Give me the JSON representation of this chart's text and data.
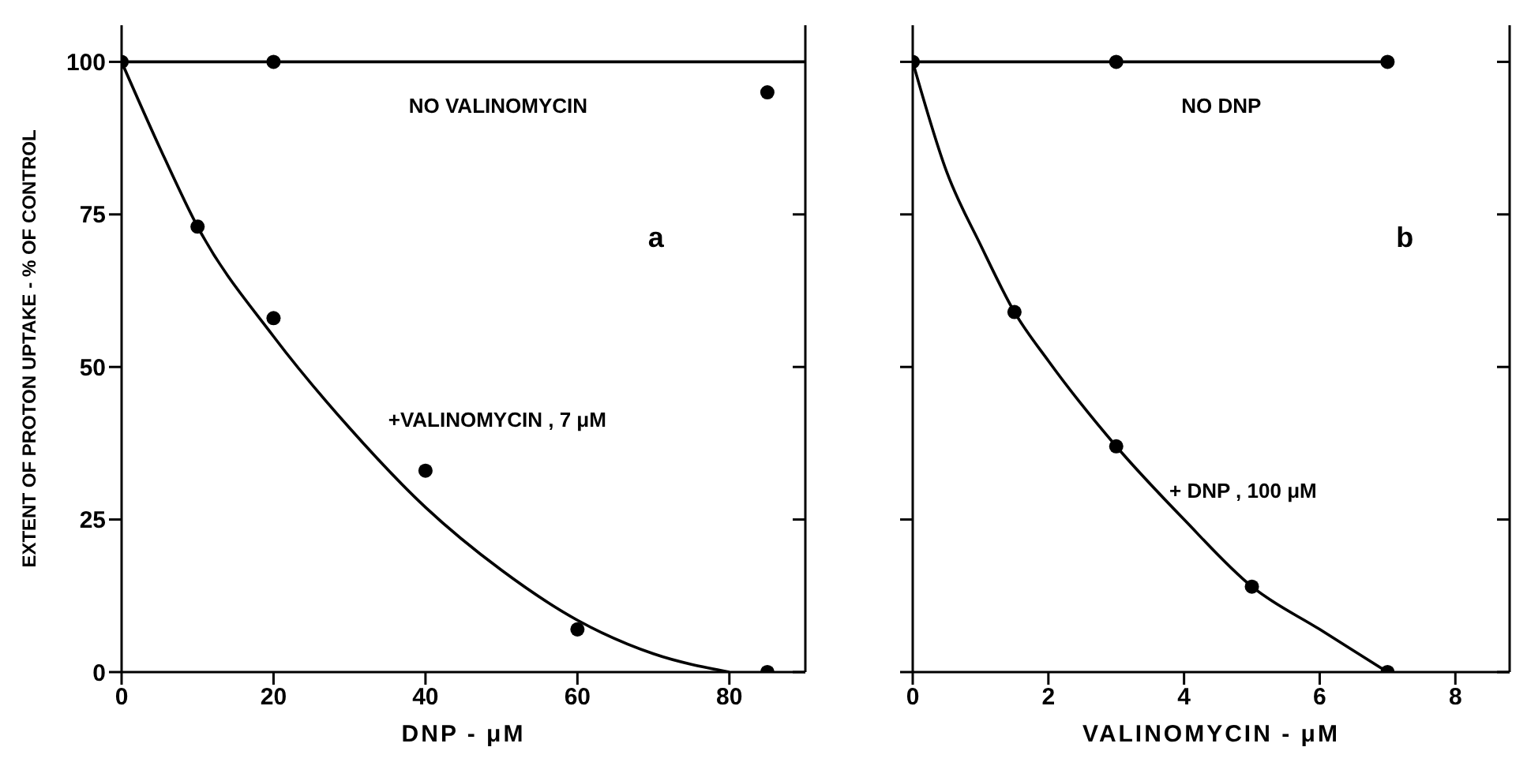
{
  "chart_data": [
    {
      "type": "scatter",
      "xlabel": "DNP - μM",
      "ylabel": "EXTENT OF PROTON UPTAKE - % OF CONTROL",
      "xlim": [
        0,
        90
      ],
      "xticks": [
        0,
        20,
        40,
        60,
        80
      ],
      "ylim": [
        0,
        106
      ],
      "yticks": [
        0,
        25,
        50,
        75,
        100
      ],
      "series": [
        {
          "type": "line",
          "color": "#000000",
          "marker": "none",
          "line_style": "solid",
          "x": [
            0,
            90
          ],
          "values": [
            100,
            100
          ]
        },
        {
          "type": "line",
          "color": "#000000",
          "marker": "none",
          "line_style": "solid",
          "x": [
            0,
            5,
            10,
            20,
            30,
            40,
            50,
            60,
            70,
            80
          ],
          "values": [
            100,
            86,
            73,
            55,
            40,
            27,
            16.7,
            8.5,
            3,
            0
          ]
        },
        {
          "color": "#000000",
          "marker": "circle",
          "x": [
            0,
            20,
            85
          ],
          "values": [
            100,
            100,
            95
          ]
        },
        {
          "color": "#000000",
          "marker": "circle",
          "x": [
            10,
            20,
            40,
            60,
            85
          ],
          "values": [
            73,
            58,
            33,
            7,
            0
          ]
        }
      ],
      "annotations": [
        "NO VALINOMYCIN",
        "+VALINOMYCIN , 7 μM",
        "a"
      ]
    },
    {
      "type": "scatter",
      "xlabel": "VALINOMYCIN - μM",
      "xlim": [
        0,
        8.8
      ],
      "xticks": [
        0,
        2,
        4,
        6,
        8
      ],
      "ylim": [
        0,
        106
      ],
      "yticks": [
        0,
        25,
        50,
        75,
        100
      ],
      "tick_labels": "x",
      "series": [
        {
          "type": "line",
          "color": "#000000",
          "marker": "none",
          "line_style": "solid",
          "x": [
            0,
            7
          ],
          "values": [
            100,
            100
          ]
        },
        {
          "type": "line",
          "color": "#000000",
          "marker": "none",
          "line_style": "solid",
          "x": [
            0,
            0.5,
            1,
            1.5,
            2,
            3,
            4,
            5,
            6,
            7
          ],
          "values": [
            100,
            82,
            70,
            59,
            51,
            37,
            25,
            14,
            7,
            0
          ]
        },
        {
          "color": "#000000",
          "marker": "circle",
          "x": [
            0,
            3,
            7
          ],
          "values": [
            100,
            100,
            100
          ]
        },
        {
          "color": "#000000",
          "marker": "circle",
          "x": [
            1.5,
            3,
            5,
            7
          ],
          "values": [
            59,
            37,
            14,
            0
          ]
        }
      ],
      "annotations": [
        "NO DNP",
        "+ DNP , 100 μM",
        "b"
      ]
    }
  ]
}
